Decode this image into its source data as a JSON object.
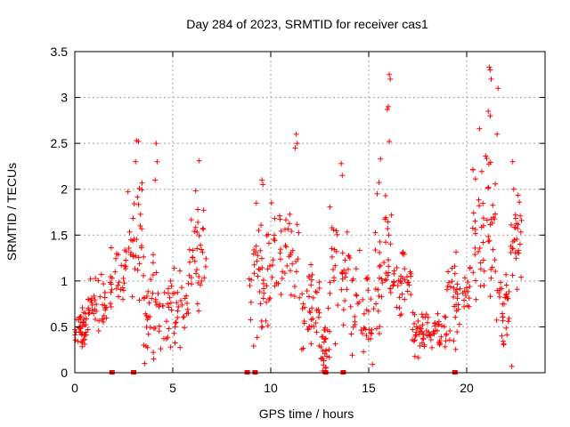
{
  "chart_data": {
    "type": "scatter",
    "title": "Day 284 of 2023, SRMTID for receiver cas1",
    "xlabel": "GPS time / hours",
    "ylabel": "SRMTID / TECUs",
    "xlim": [
      0,
      24
    ],
    "ylim": [
      0,
      3.5
    ],
    "xticks": [
      0,
      5,
      10,
      15,
      20
    ],
    "yticks": [
      0,
      0.5,
      1,
      1.5,
      2,
      2.5,
      3,
      3.5
    ],
    "ytick_labels": [
      "0",
      "0.5",
      "1",
      "1.5",
      "2",
      "2.5",
      "3",
      "3.5"
    ],
    "grid": true,
    "marker": "plus",
    "series_color": "#ff0000",
    "zero_markers_x": [
      1.9,
      3.0,
      8.8,
      9.2,
      12.8,
      13.7,
      19.4
    ],
    "clusters": [
      {
        "x_start": 0.0,
        "x_end": 0.6,
        "y_base": 0.5,
        "y_spread": 0.15,
        "count": 40
      },
      {
        "x_start": 0.6,
        "x_end": 1.8,
        "y_base": 0.75,
        "y_spread": 0.25,
        "count": 40
      },
      {
        "x_start": 1.8,
        "x_end": 2.7,
        "y_base": 1.0,
        "y_spread": 0.3,
        "count": 30
      },
      {
        "x_start": 2.7,
        "x_end": 3.5,
        "y_base": 1.3,
        "y_spread": 0.5,
        "count": 30
      },
      {
        "x_start": 3.5,
        "x_end": 4.5,
        "y_base": 0.6,
        "y_spread": 0.4,
        "count": 40
      },
      {
        "x_start": 4.5,
        "x_end": 5.8,
        "y_base": 0.7,
        "y_spread": 0.3,
        "count": 45
      },
      {
        "x_start": 5.8,
        "x_end": 6.7,
        "y_base": 1.3,
        "y_spread": 0.4,
        "count": 35
      },
      {
        "x_start": 8.9,
        "x_end": 10.0,
        "y_base": 1.0,
        "y_spread": 0.5,
        "count": 45
      },
      {
        "x_start": 10.0,
        "x_end": 11.5,
        "y_base": 1.3,
        "y_spread": 0.5,
        "count": 45
      },
      {
        "x_start": 11.5,
        "x_end": 12.5,
        "y_base": 0.8,
        "y_spread": 0.4,
        "count": 40
      },
      {
        "x_start": 12.5,
        "x_end": 13.0,
        "y_base": 0.3,
        "y_spread": 0.25,
        "count": 25
      },
      {
        "x_start": 13.0,
        "x_end": 14.0,
        "y_base": 1.0,
        "y_spread": 0.5,
        "count": 35
      },
      {
        "x_start": 14.0,
        "x_end": 15.3,
        "y_base": 0.7,
        "y_spread": 0.4,
        "count": 40
      },
      {
        "x_start": 15.3,
        "x_end": 16.2,
        "y_base": 1.2,
        "y_spread": 0.5,
        "count": 40
      },
      {
        "x_start": 16.2,
        "x_end": 17.2,
        "y_base": 1.0,
        "y_spread": 0.3,
        "count": 35
      },
      {
        "x_start": 17.2,
        "x_end": 19.0,
        "y_base": 0.45,
        "y_spread": 0.15,
        "count": 70
      },
      {
        "x_start": 19.0,
        "x_end": 20.3,
        "y_base": 0.8,
        "y_spread": 0.3,
        "count": 45
      },
      {
        "x_start": 20.3,
        "x_end": 21.5,
        "y_base": 1.6,
        "y_spread": 0.6,
        "count": 55
      },
      {
        "x_start": 21.5,
        "x_end": 22.2,
        "y_base": 0.7,
        "y_spread": 0.3,
        "count": 30
      },
      {
        "x_start": 22.2,
        "x_end": 22.8,
        "y_base": 1.5,
        "y_spread": 0.35,
        "count": 30
      }
    ],
    "peaks": [
      {
        "x": 3.15,
        "y": 2.53
      },
      {
        "x": 3.25,
        "y": 2.52
      },
      {
        "x": 3.1,
        "y": 2.3
      },
      {
        "x": 4.15,
        "y": 2.5
      },
      {
        "x": 4.2,
        "y": 2.3
      },
      {
        "x": 4.1,
        "y": 2.1
      },
      {
        "x": 6.35,
        "y": 2.31
      },
      {
        "x": 9.55,
        "y": 2.1
      },
      {
        "x": 9.6,
        "y": 2.05
      },
      {
        "x": 11.3,
        "y": 2.6
      },
      {
        "x": 11.35,
        "y": 2.5
      },
      {
        "x": 11.25,
        "y": 2.45
      },
      {
        "x": 13.6,
        "y": 2.28
      },
      {
        "x": 13.65,
        "y": 2.15
      },
      {
        "x": 15.6,
        "y": 2.33
      },
      {
        "x": 16.05,
        "y": 3.25
      },
      {
        "x": 16.1,
        "y": 3.2
      },
      {
        "x": 16.0,
        "y": 2.9
      },
      {
        "x": 15.95,
        "y": 2.87
      },
      {
        "x": 16.05,
        "y": 2.52
      },
      {
        "x": 21.15,
        "y": 3.33
      },
      {
        "x": 21.2,
        "y": 3.3
      },
      {
        "x": 21.25,
        "y": 3.2
      },
      {
        "x": 21.6,
        "y": 3.1
      },
      {
        "x": 21.1,
        "y": 2.85
      },
      {
        "x": 21.2,
        "y": 2.8
      },
      {
        "x": 21.55,
        "y": 2.6
      },
      {
        "x": 22.35,
        "y": 2.3
      },
      {
        "x": 22.4,
        "y": 2.0
      },
      {
        "x": 22.3,
        "y": 0.07
      },
      {
        "x": 12.65,
        "y": 0.02
      },
      {
        "x": 12.8,
        "y": 0.05
      }
    ]
  }
}
